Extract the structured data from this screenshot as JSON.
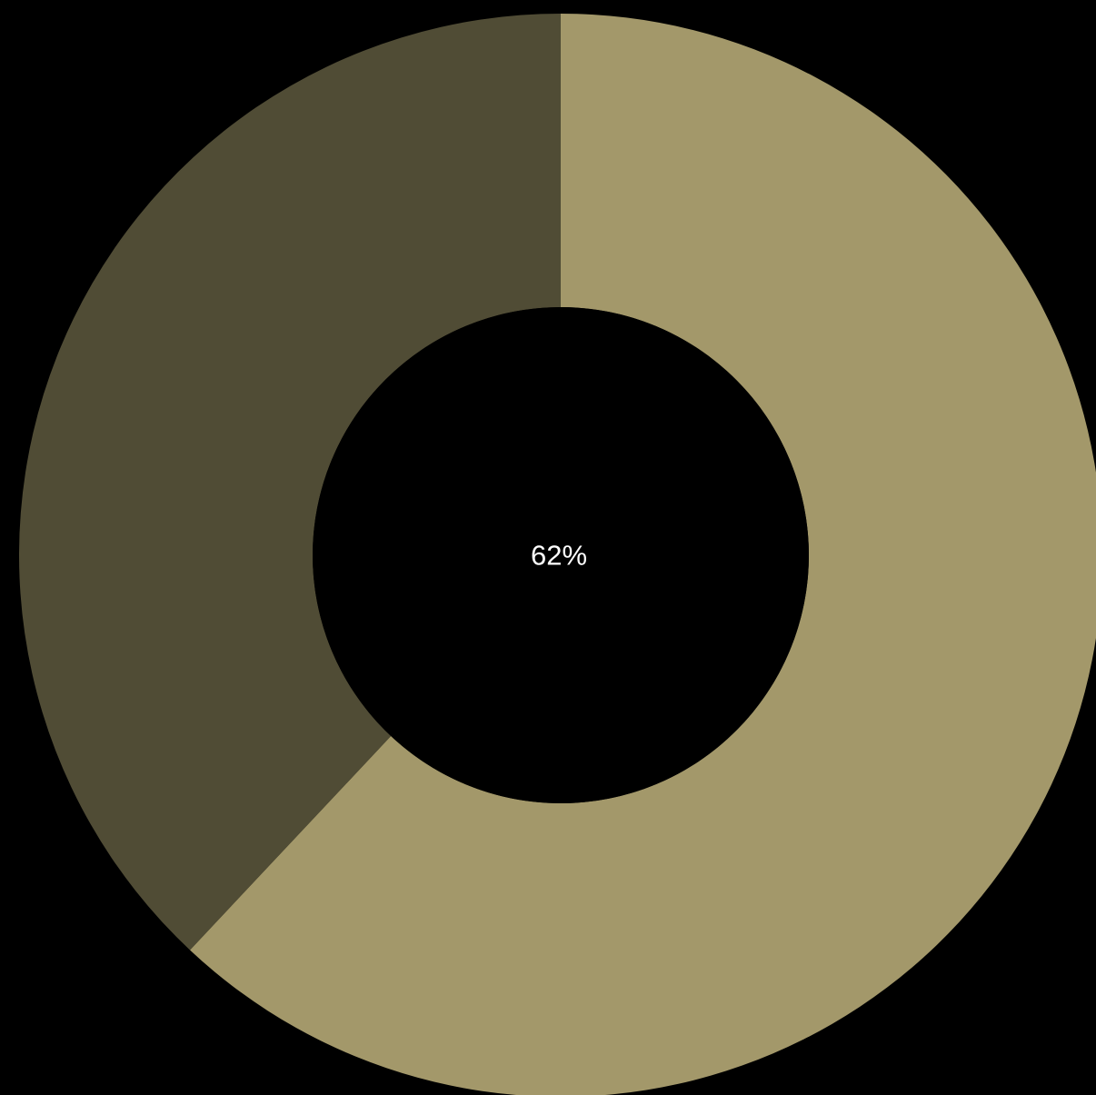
{
  "chart_data": {
    "type": "pie",
    "variant": "donut",
    "slices": [
      {
        "value": 62,
        "color": "#a3986a"
      },
      {
        "value": 38,
        "color": "#504c35"
      }
    ],
    "center_text": "62%",
    "background": "#000000",
    "start": "12 o'clock",
    "direction": "clockwise"
  }
}
